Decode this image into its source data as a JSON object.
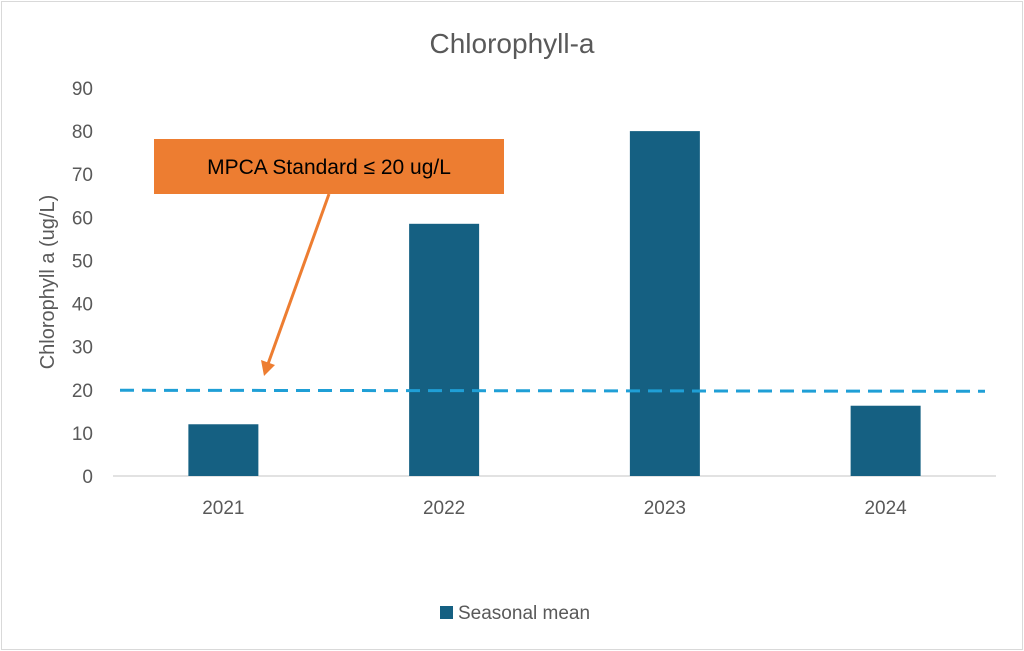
{
  "chart_data": {
    "type": "bar",
    "title": "Chlorophyll-a",
    "xlabel": "",
    "ylabel": "Chlorophyll a (ug/L)",
    "categories": [
      "2021",
      "2022",
      "2023",
      "2024"
    ],
    "series": [
      {
        "name": "Seasonal mean",
        "values": [
          12,
          58.5,
          80,
          16.3
        ]
      }
    ],
    "reference_line": {
      "value": 20,
      "style": "dashed"
    },
    "annotation": {
      "text": "MPCA Standard ≤ 20 ug/L",
      "points_to_category": "2021"
    },
    "ylim": [
      0,
      90
    ],
    "y_ticks": [
      0,
      10,
      20,
      30,
      40,
      50,
      60,
      70,
      80,
      90
    ],
    "grid": false,
    "legend_position": "bottom",
    "colors": {
      "bar": "#156082",
      "reference_line": "#1f9fd6",
      "annotation_box": "#ed7d31",
      "annotation_text": "#000000",
      "text": "#595959",
      "axis": "#d9d9d9"
    }
  }
}
